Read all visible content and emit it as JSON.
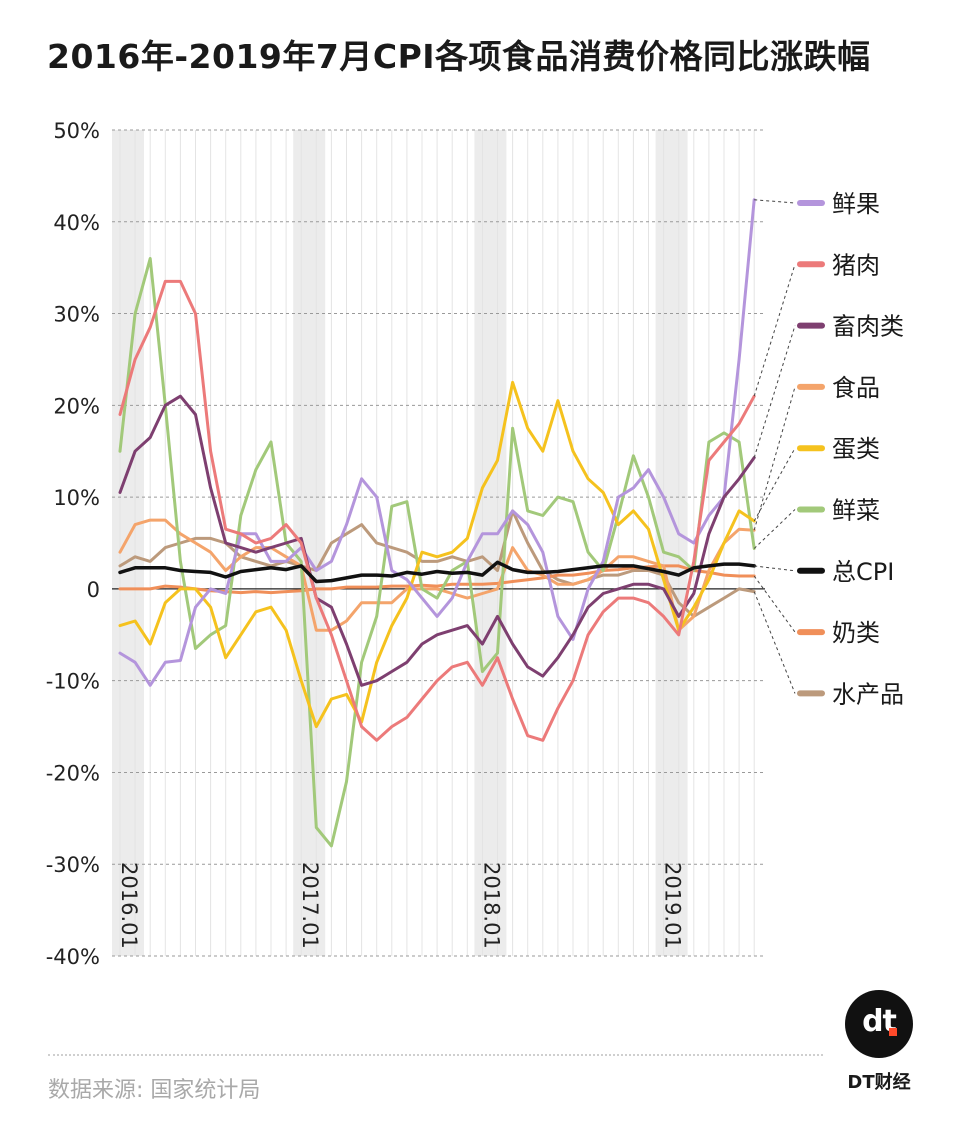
{
  "title": "2016年-2019年7月CPI各项食品消费价格同比涨跌幅",
  "source": "数据来源: 国家统计局",
  "brand": {
    "logo_text": "dt",
    "name": "DT财经"
  },
  "chart_data": {
    "type": "line",
    "ylim": [
      -40,
      50
    ],
    "yticks": [
      "50%",
      "40%",
      "30%",
      "20%",
      "10%",
      "0",
      "-10%",
      "-20%",
      "-30%",
      "-40%"
    ],
    "ytick_values": [
      50,
      40,
      30,
      20,
      10,
      0,
      -10,
      -20,
      -30,
      -40
    ],
    "xtick_labels": [
      "2016.01",
      "2017.01",
      "2018.01",
      "2019.01"
    ],
    "xtick_index": [
      0,
      12,
      24,
      36
    ],
    "months": 43,
    "series": [
      {
        "name": "鲜果",
        "color": "#b495dc",
        "label_value": 42.4,
        "values": [
          -7,
          -8,
          -10.5,
          -8,
          -7.8,
          -2,
          0,
          -0.5,
          6,
          6,
          3,
          3,
          4.5,
          2,
          3,
          7,
          12,
          10,
          2,
          1,
          -1,
          -3,
          -1,
          3,
          6,
          6,
          8.5,
          7,
          4,
          -3,
          -5.5,
          0,
          3,
          10,
          11,
          13,
          10,
          6,
          5,
          8,
          10,
          25,
          42.4
        ]
      },
      {
        "name": "猪肉",
        "color": "#ec7a7a",
        "label_value": 21,
        "values": [
          19,
          25,
          28.5,
          33.5,
          33.5,
          30,
          15,
          6.5,
          6,
          5,
          5.5,
          7,
          5,
          -1,
          -5,
          -10,
          -15,
          -16.5,
          -15,
          -14,
          -12,
          -10,
          -8.5,
          -8,
          -10.5,
          -7.5,
          -12,
          -16,
          -16.5,
          -13,
          -10,
          -5,
          -2.5,
          -1,
          -1,
          -1.5,
          -3,
          -5,
          3,
          14,
          16,
          18,
          21
        ]
      },
      {
        "name": "畜肉类",
        "color": "#7e3f70",
        "label_value": 14.3,
        "values": [
          10.5,
          15,
          16.5,
          20,
          21,
          19,
          11,
          5,
          4.5,
          4,
          4.5,
          5,
          5.5,
          -1,
          -2,
          -6,
          -10.5,
          -10,
          -9,
          -8,
          -6,
          -5,
          -4.5,
          -4,
          -6,
          -3,
          -6,
          -8.5,
          -9.5,
          -7.5,
          -5,
          -2,
          -0.5,
          0,
          0.5,
          0.5,
          0,
          -3,
          -0.5,
          6,
          10,
          12,
          14.3
        ]
      },
      {
        "name": "食品",
        "color": "#f4a46b",
        "label_value": 6.4,
        "values": [
          4,
          7,
          7.5,
          7.5,
          6,
          5,
          4,
          2,
          3.5,
          4.5,
          4.5,
          3.5,
          2.5,
          -4.5,
          -4.5,
          -3.5,
          -1.5,
          -1.5,
          -1.5,
          0,
          0,
          0,
          -0.5,
          -1,
          -0.5,
          0,
          4.5,
          2,
          1.5,
          0.5,
          0.5,
          1,
          2,
          3.5,
          3.5,
          3,
          2.5,
          -4.5,
          -3,
          2,
          5,
          6.5,
          6.4
        ]
      },
      {
        "name": "蛋类",
        "color": "#f5c21e",
        "label_value": 7.4,
        "values": [
          -4,
          -3.5,
          -6,
          -1.5,
          0,
          0,
          -2,
          -7.5,
          -5,
          -2.5,
          -2,
          -4.5,
          -10,
          -15,
          -12,
          -11.5,
          -14.5,
          -8,
          -4,
          -1,
          4,
          3.5,
          4,
          5.5,
          11,
          14,
          22.5,
          17.5,
          15,
          20.5,
          15,
          12,
          10.5,
          7,
          8.5,
          6.5,
          1,
          -4.5,
          -2,
          1,
          5,
          8.5,
          7.4
        ]
      },
      {
        "name": "鲜菜",
        "color": "#a2c97a",
        "label_value": 4.4,
        "values": [
          15,
          30,
          36,
          20,
          3,
          -6.5,
          -5,
          -4,
          8,
          13,
          16,
          5,
          3,
          -26,
          -28,
          -21,
          -8,
          -3,
          9,
          9.5,
          0,
          -1,
          2,
          3,
          -9,
          -7,
          17.5,
          8.5,
          8,
          10,
          9.5,
          4,
          2,
          8,
          14.5,
          10,
          4,
          3.5,
          2,
          16,
          17,
          16,
          4.4
        ]
      },
      {
        "name": "总CPI",
        "color": "#111111",
        "label_value": 2.5,
        "values": [
          1.8,
          2.3,
          2.3,
          2.3,
          2,
          1.9,
          1.8,
          1.3,
          1.9,
          2.1,
          2.3,
          2.1,
          2.5,
          0.8,
          0.9,
          1.2,
          1.5,
          1.5,
          1.4,
          1.8,
          1.6,
          1.9,
          1.7,
          1.8,
          1.5,
          2.9,
          2.1,
          1.8,
          1.8,
          1.9,
          2.1,
          2.3,
          2.5,
          2.5,
          2.5,
          2.2,
          1.9,
          1.5,
          2.3,
          2.5,
          2.7,
          2.7,
          2.5
        ]
      },
      {
        "name": "奶类",
        "color": "#f08f59",
        "label_value": 1.4,
        "values": [
          0,
          0,
          0,
          0.3,
          0.2,
          0,
          -0.2,
          -0.3,
          -0.4,
          -0.3,
          -0.4,
          -0.3,
          -0.2,
          0,
          0,
          0.2,
          0.2,
          0.2,
          0.3,
          0.3,
          0.4,
          0.3,
          0.5,
          0.5,
          0.5,
          0.6,
          0.8,
          1,
          1.2,
          1.5,
          1.5,
          1.7,
          2,
          2.1,
          2.3,
          2.4,
          2.5,
          2.5,
          2,
          1.8,
          1.5,
          1.4,
          1.4
        ]
      },
      {
        "name": "水产品",
        "color": "#bc9a7c",
        "label_value": -0.3,
        "values": [
          2.5,
          3.5,
          3,
          4.5,
          5,
          5.5,
          5.5,
          5,
          3.5,
          3,
          2.5,
          3,
          2.5,
          2,
          5,
          6,
          7,
          5,
          4.5,
          4,
          3,
          3,
          3.5,
          3,
          3.5,
          2,
          8.5,
          5,
          2,
          1,
          0.5,
          1,
          1.5,
          1.5,
          2,
          2,
          1.5,
          -1.5,
          -3,
          -2,
          -1,
          0,
          -0.3
        ]
      }
    ]
  }
}
